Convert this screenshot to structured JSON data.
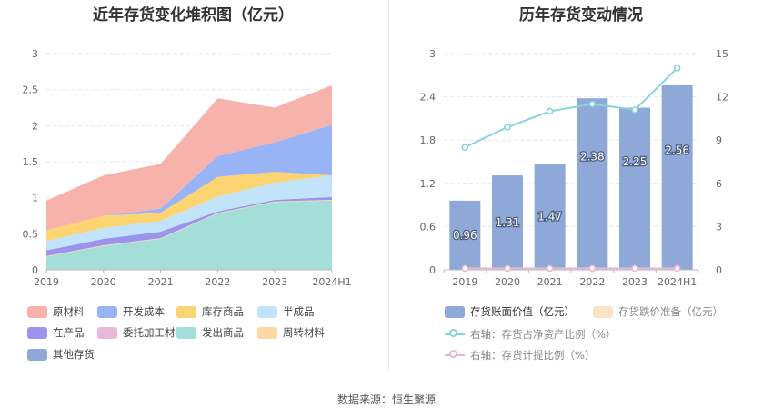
{
  "colors": {
    "原材料": "#f7b2ab",
    "开发成本": "#98b4f7",
    "库存商品": "#fcd471",
    "半成品": "#c2e4fa",
    "在产品": "#9b94ef",
    "委托加工材料": "#e8b9d8",
    "发出商品": "#a3ded9",
    "周转材料": "#fcd9a4",
    "其他存货": "#8ea9d8",
    "bar": "#8ea9d8",
    "bar_reserve": "#fbe3c4",
    "ratio_line": "#86d5dc",
    "provision_line": "#eab7d3"
  },
  "chart_data": [
    {
      "type": "area",
      "stacked": true,
      "title": "近年存货变化堆积图（亿元）",
      "categories": [
        "2019",
        "2020",
        "2021",
        "2022",
        "2023",
        "2024H1"
      ],
      "ylim": [
        0,
        3
      ],
      "yticks": [
        "0",
        "0.5",
        "1",
        "1.5",
        "2",
        "2.5",
        "3"
      ],
      "grid": true,
      "series": [
        {
          "name": "发出商品",
          "values": [
            0.18,
            0.33,
            0.43,
            0.78,
            0.94,
            0.96
          ]
        },
        {
          "name": "周转材料",
          "values": [
            0.01,
            0.01,
            0.01,
            0.01,
            0.01,
            0.01
          ]
        },
        {
          "name": "委托加工材料",
          "values": [
            0.0,
            0.0,
            0.0,
            0.0,
            0.0,
            0.0
          ]
        },
        {
          "name": "在产品",
          "values": [
            0.08,
            0.09,
            0.09,
            0.02,
            0.02,
            0.04
          ]
        },
        {
          "name": "半成品",
          "values": [
            0.13,
            0.15,
            0.15,
            0.21,
            0.24,
            0.3
          ]
        },
        {
          "name": "库存商品",
          "values": [
            0.15,
            0.17,
            0.11,
            0.27,
            0.15,
            0.0
          ]
        },
        {
          "name": "开发成本",
          "values": [
            0.0,
            0.0,
            0.06,
            0.29,
            0.41,
            0.7
          ]
        },
        {
          "name": "其他存货",
          "values": [
            0.0,
            0.0,
            0.0,
            0.0,
            0.0,
            0.0
          ]
        },
        {
          "name": "原材料",
          "values": [
            0.41,
            0.56,
            0.62,
            0.8,
            0.48,
            0.55
          ]
        }
      ]
    },
    {
      "type": "bar",
      "title": "历年存货变动情况",
      "categories": [
        "2019",
        "2020",
        "2021",
        "2022",
        "2023",
        "2024H1"
      ],
      "ylim": [
        0,
        3
      ],
      "yticks": [
        "0",
        "0.6",
        "1.2",
        "1.8",
        "2.4",
        "3"
      ],
      "y2lim": [
        0,
        15
      ],
      "y2ticks": [
        "0",
        "3",
        "6",
        "9",
        "12",
        "15"
      ],
      "series": [
        {
          "name": "存货账面价值（亿元）",
          "type": "bar",
          "values": [
            0.96,
            1.31,
            1.47,
            2.38,
            2.25,
            2.56
          ],
          "labels": [
            "0.96",
            "1.31",
            "1.47",
            "2.38",
            "2.25",
            "2.56"
          ]
        },
        {
          "name": "存货跌价准备（亿元）",
          "type": "bar",
          "values": [
            0,
            0,
            0,
            0,
            0,
            0
          ]
        },
        {
          "name": "右轴：存货占净资产比例（%）",
          "type": "line",
          "axis": "right",
          "values": [
            8.5,
            9.9,
            11.0,
            11.5,
            11.1,
            14.0
          ]
        },
        {
          "name": "右轴：存货计提比例（%）",
          "type": "line",
          "axis": "right",
          "values": [
            0.1,
            0.1,
            0.1,
            0.1,
            0.1,
            0.1
          ]
        }
      ]
    }
  ],
  "footer": {
    "source": "数据来源：恒生聚源"
  }
}
